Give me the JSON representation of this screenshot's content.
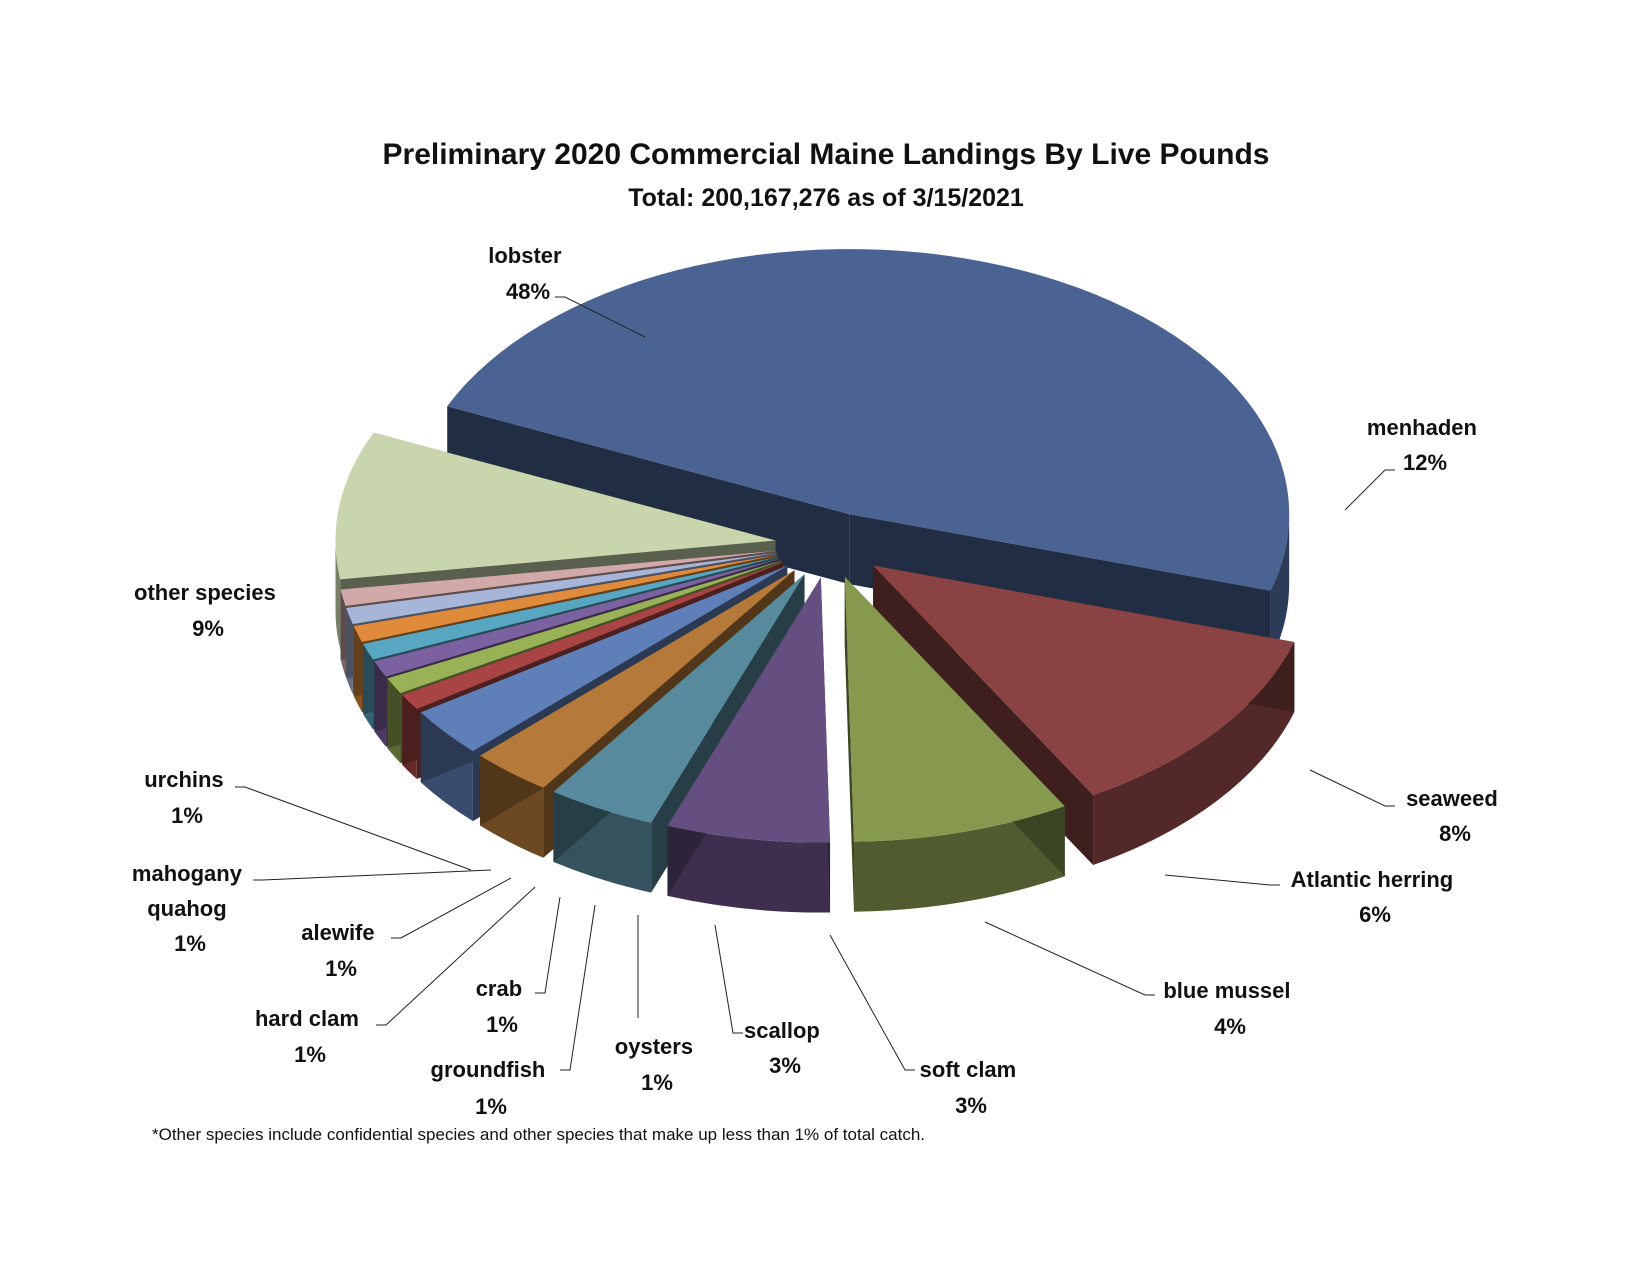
{
  "chart_data": {
    "type": "pie",
    "title": "Preliminary 2020 Commercial Maine Landings By Live Pounds",
    "subtitle": "Total: 200,167,276  as of 3/15/2021",
    "footnote": "*Other species include confidential species and other species that make up less than 1% of total catch.",
    "slices": [
      {
        "name": "lobster",
        "lines": [
          "lobster",
          "48%"
        ],
        "value": 48,
        "color": "#4a6392"
      },
      {
        "name": "menhaden",
        "lines": [
          "menhaden",
          "12%"
        ],
        "value": 12,
        "color": "#8b4242"
      },
      {
        "name": "seaweed",
        "lines": [
          "seaweed",
          "8%"
        ],
        "value": 8,
        "color": "#86994e"
      },
      {
        "name": "Atlantic herring",
        "lines": [
          "Atlantic herring",
          "6%"
        ],
        "value": 6,
        "color": "#654f80"
      },
      {
        "name": "blue mussel",
        "lines": [
          "blue mussel",
          "4%"
        ],
        "value": 4,
        "color": "#578a9c"
      },
      {
        "name": "soft clam",
        "lines": [
          "soft clam",
          "3%"
        ],
        "value": 3,
        "color": "#b5793a"
      },
      {
        "name": "scallop",
        "lines": [
          "scallop",
          "3%"
        ],
        "value": 3,
        "color": "#5f7fb8"
      },
      {
        "name": "oysters",
        "lines": [
          "oysters",
          "1%"
        ],
        "value": 1,
        "color": "#a84444"
      },
      {
        "name": "groundfish",
        "lines": [
          "groundfish",
          "1%"
        ],
        "value": 1,
        "color": "#99b256"
      },
      {
        "name": "crab",
        "lines": [
          "crab",
          "1%"
        ],
        "value": 1,
        "color": "#7c61a1"
      },
      {
        "name": "hard clam",
        "lines": [
          "hard clam",
          "1%"
        ],
        "value": 1,
        "color": "#58a7c2"
      },
      {
        "name": "alewife",
        "lines": [
          "alewife",
          "1%"
        ],
        "value": 1,
        "color": "#df8b3b"
      },
      {
        "name": "mahogany quahog",
        "lines": [
          "mahogany",
          "quahog",
          "1%"
        ],
        "value": 1,
        "color": "#a6b5d8"
      },
      {
        "name": "urchins",
        "lines": [
          "urchins",
          "1%"
        ],
        "value": 1,
        "color": "#d1a9a9"
      },
      {
        "name": "other species",
        "lines": [
          "other species",
          "9%"
        ],
        "value": 9,
        "color": "#c8d5ad"
      }
    ]
  }
}
